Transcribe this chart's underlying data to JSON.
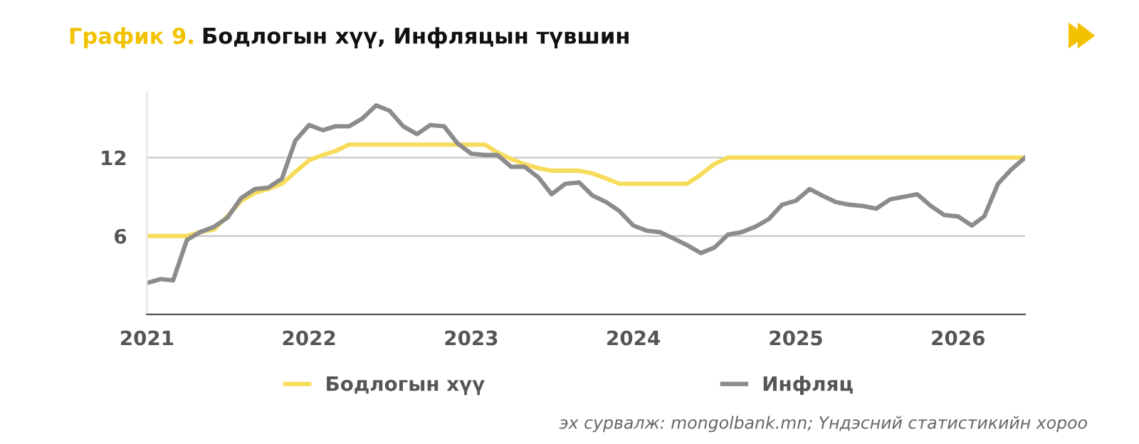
{
  "chart_data": {
    "type": "line",
    "title": "Бодлогын хүү, Инфляцын түвшин",
    "annotations": [
      "График 9.",
      "эх сурвалж: mongolbank.mn; Үндэсний статистикийн хороо"
    ],
    "x": [
      "2021-01",
      "2021-02",
      "2021-03",
      "2021-04",
      "2021-05",
      "2021-06",
      "2021-07",
      "2021-08",
      "2021-09",
      "2021-10",
      "2021-11",
      "2021-12",
      "2022-01",
      "2022-02",
      "2022-03",
      "2022-04",
      "2022-05",
      "2022-06",
      "2022-07",
      "2022-08",
      "2022-09",
      "2022-10",
      "2022-11",
      "2022-12",
      "2023-01",
      "2023-02",
      "2023-03",
      "2023-04",
      "2023-05",
      "2023-06",
      "2023-07",
      "2023-08",
      "2023-09",
      "2023-10",
      "2023-11",
      "2023-12",
      "2024-01",
      "2024-02",
      "2024-03",
      "2024-04",
      "2024-05",
      "2024-06",
      "2024-07",
      "2024-08",
      "2024-09",
      "2024-10",
      "2024-11",
      "2024-12",
      "2025-01",
      "2025-02",
      "2025-03",
      "2025-04",
      "2025-05",
      "2025-06",
      "2025-07",
      "2025-08",
      "2025-09",
      "2025-10",
      "2025-11",
      "2025-12",
      "2026-01",
      "2026-02",
      "2026-03",
      "2026-04",
      "2026-05",
      "2026-06"
    ],
    "series": [
      {
        "name": "Бодлогын хүү",
        "color": "#f7dc5c",
        "values": [
          6,
          6,
          6,
          6,
          6.3,
          6.5,
          7.5,
          8.7,
          9.3,
          9.6,
          10,
          10.9,
          11.8,
          12.2,
          12.5,
          13,
          13,
          13,
          13,
          13,
          13,
          13,
          13,
          13,
          13,
          13,
          12.4,
          11.9,
          11.5,
          11.2,
          11,
          11,
          11,
          10.8,
          10.4,
          10,
          10,
          10,
          10,
          10,
          10,
          10.7,
          11.5,
          12,
          12,
          12,
          12,
          12,
          12,
          12,
          12,
          12,
          12,
          12,
          12,
          12,
          12,
          12,
          12,
          12,
          12,
          12,
          12,
          12,
          12,
          12
        ]
      },
      {
        "name": "Инфляц",
        "color": "#8c8c8c",
        "values": [
          2.4,
          2.7,
          2.6,
          5.7,
          6.3,
          6.7,
          7.4,
          8.9,
          9.6,
          9.7,
          10.4,
          13.3,
          14.5,
          14.1,
          14.4,
          14.4,
          15.0,
          16.0,
          15.6,
          14.4,
          13.8,
          14.5,
          14.4,
          13.1,
          12.3,
          12.2,
          12.2,
          11.3,
          11.3,
          10.5,
          9.2,
          10.0,
          10.1,
          9.1,
          8.6,
          7.9,
          6.8,
          6.4,
          6.3,
          5.8,
          5.3,
          4.7,
          5.1,
          6.1,
          6.3,
          6.7,
          7.3,
          8.4,
          8.7,
          9.6,
          9.1,
          8.6,
          8.4,
          8.3,
          8.1,
          8.8,
          9.0,
          9.2,
          8.3,
          7.6,
          7.5,
          6.8,
          7.5,
          10.0,
          11.1,
          12.0
        ]
      }
    ],
    "xlim": [
      "2021-01",
      "2026-06"
    ],
    "xticks": [
      "2021",
      "2022",
      "2023",
      "2024",
      "2025",
      "2026"
    ],
    "ylim": [
      0,
      17
    ],
    "yticks": [
      6,
      12
    ],
    "grid": "y",
    "legend": "bottom",
    "marker": "none",
    "line_style": "solid"
  }
}
